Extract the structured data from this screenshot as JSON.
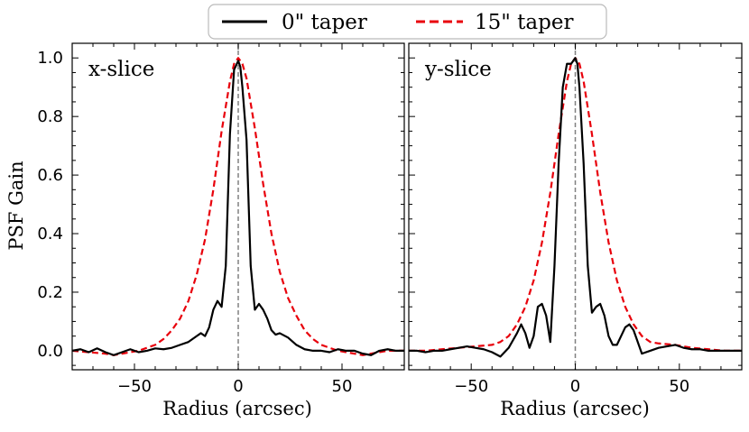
{
  "chart_data": {
    "type": "line",
    "legend": {
      "placement": "top-center",
      "entries": [
        {
          "label": "0\" taper",
          "color": "#000000",
          "style": "solid"
        },
        {
          "label": "15\" taper",
          "color": "#e8000b",
          "style": "dashed"
        }
      ]
    },
    "ylabel": "PSF Gain",
    "shared_ylim": [
      -0.065,
      1.05
    ],
    "yticks": [
      0.0,
      0.2,
      0.4,
      0.6,
      0.8,
      1.0
    ],
    "ytick_labels": [
      "0.0",
      "0.2",
      "0.4",
      "0.6",
      "0.8",
      "1.0"
    ],
    "panels": [
      {
        "title": "x-slice",
        "xlabel": "Radius (arcsec)",
        "xlim": [
          -80,
          80
        ],
        "xticks": [
          -50,
          0,
          50
        ],
        "xtick_labels": [
          "−50",
          "0",
          "50"
        ],
        "vline_x": 0,
        "series": [
          {
            "name": "0\" taper",
            "x": [
              -80,
              -76,
              -72,
              -68,
              -64,
              -60,
              -56,
              -52,
              -48,
              -44,
              -40,
              -36,
              -32,
              -28,
              -24,
              -20,
              -18,
              -16,
              -14,
              -12,
              -10,
              -8,
              -6,
              -4,
              -2,
              0,
              1,
              2,
              4,
              6,
              8,
              10,
              12,
              14,
              16,
              18,
              20,
              24,
              28,
              32,
              36,
              40,
              44,
              48,
              52,
              56,
              60,
              64,
              68,
              72,
              76,
              80
            ],
            "y": [
              0.0,
              0.005,
              -0.005,
              0.008,
              -0.005,
              -0.015,
              -0.005,
              0.005,
              -0.005,
              0.0,
              0.008,
              0.005,
              0.01,
              0.02,
              0.03,
              0.05,
              0.06,
              0.05,
              0.08,
              0.14,
              0.17,
              0.15,
              0.29,
              0.74,
              0.96,
              0.99,
              0.97,
              0.9,
              0.72,
              0.29,
              0.14,
              0.16,
              0.14,
              0.11,
              0.07,
              0.055,
              0.06,
              0.045,
              0.02,
              0.005,
              0.0,
              0.0,
              -0.005,
              0.005,
              0.0,
              0.0,
              -0.01,
              -0.015,
              0.0,
              0.005,
              0.0,
              0.0
            ]
          },
          {
            "name": "15\" taper",
            "x": [
              -80,
              -72,
              -64,
              -60,
              -56,
              -52,
              -48,
              -44,
              -40,
              -36,
              -32,
              -28,
              -24,
              -20,
              -16,
              -12,
              -8,
              -4,
              -2,
              0,
              2,
              4,
              8,
              12,
              16,
              20,
              24,
              28,
              32,
              36,
              40,
              44,
              48,
              52,
              56,
              60,
              64,
              72,
              80
            ],
            "y": [
              0.0,
              -0.005,
              -0.01,
              -0.015,
              -0.01,
              -0.005,
              0.0,
              0.01,
              0.02,
              0.04,
              0.07,
              0.11,
              0.17,
              0.26,
              0.38,
              0.55,
              0.75,
              0.92,
              0.98,
              1.0,
              0.98,
              0.93,
              0.76,
              0.57,
              0.4,
              0.27,
              0.18,
              0.12,
              0.07,
              0.04,
              0.02,
              0.01,
              0.0,
              -0.005,
              -0.01,
              -0.015,
              -0.01,
              0.0,
              0.0
            ]
          }
        ]
      },
      {
        "title": "y-slice",
        "xlabel": "Radius (arcsec)",
        "xlim": [
          -80,
          80
        ],
        "xticks": [
          -50,
          0,
          50
        ],
        "xtick_labels": [
          "−50",
          "0",
          "50"
        ],
        "vline_x": 0,
        "series": [
          {
            "name": "0\" taper",
            "x": [
              -80,
              -76,
              -72,
              -68,
              -64,
              -60,
              -56,
              -52,
              -48,
              -44,
              -40,
              -36,
              -32,
              -28,
              -26,
              -24,
              -22,
              -20,
              -18,
              -16,
              -14,
              -12,
              -10,
              -8,
              -6,
              -4,
              -2,
              0,
              1,
              2,
              4,
              6,
              8,
              10,
              12,
              14,
              16,
              18,
              20,
              22,
              24,
              26,
              28,
              30,
              32,
              36,
              40,
              44,
              48,
              52,
              56,
              60,
              64,
              68,
              72,
              76,
              80
            ],
            "y": [
              0.0,
              0.0,
              -0.005,
              0.0,
              0.0,
              0.005,
              0.01,
              0.015,
              0.01,
              0.005,
              -0.005,
              -0.02,
              0.01,
              0.06,
              0.09,
              0.06,
              0.01,
              0.05,
              0.15,
              0.16,
              0.12,
              0.03,
              0.29,
              0.64,
              0.9,
              0.98,
              0.98,
              1.0,
              0.98,
              0.9,
              0.64,
              0.29,
              0.13,
              0.15,
              0.16,
              0.12,
              0.05,
              0.02,
              0.02,
              0.05,
              0.08,
              0.09,
              0.07,
              0.03,
              -0.01,
              0.0,
              0.01,
              0.015,
              0.02,
              0.01,
              0.005,
              0.005,
              0.0,
              0.0,
              0.0,
              0.0,
              0.0
            ]
          },
          {
            "name": "15\" taper",
            "x": [
              -80,
              -72,
              -64,
              -56,
              -48,
              -40,
              -36,
              -32,
              -28,
              -24,
              -20,
              -16,
              -12,
              -8,
              -4,
              -2,
              0,
              2,
              4,
              8,
              12,
              16,
              20,
              24,
              28,
              32,
              36,
              40,
              48,
              56,
              64,
              72,
              80
            ],
            "y": [
              0.0,
              0.0,
              0.005,
              0.01,
              0.015,
              0.02,
              0.03,
              0.05,
              0.09,
              0.15,
              0.24,
              0.37,
              0.54,
              0.74,
              0.92,
              0.98,
              1.0,
              0.98,
              0.92,
              0.74,
              0.54,
              0.37,
              0.24,
              0.15,
              0.09,
              0.05,
              0.03,
              0.025,
              0.02,
              0.01,
              0.005,
              0.0,
              0.0
            ]
          }
        ]
      }
    ]
  }
}
